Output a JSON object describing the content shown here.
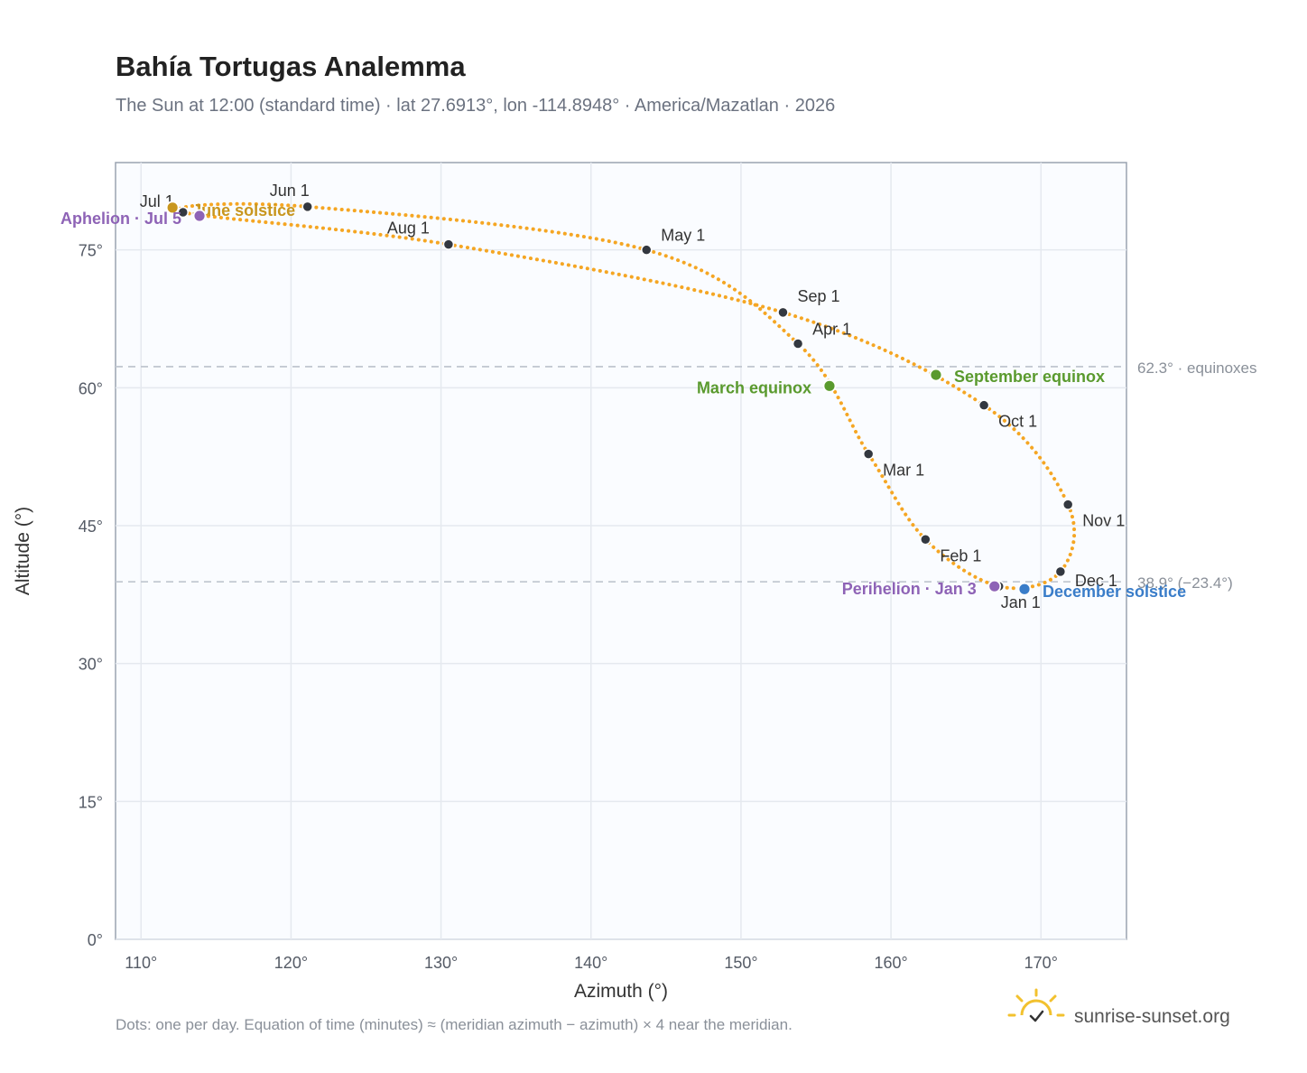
{
  "title": "Bahía Tortugas Analemma",
  "subtitle": "The Sun at 12:00 (standard time) · lat 27.6913°, lon -114.8948° · America/Mazatlan · 2026",
  "footnote": "Dots: one per day. Equation of time (minutes) ≈ (meridian azimuth − azimuth) × 4 near the meridian.",
  "brand": {
    "name": "sunrise-sunset.org",
    "logo_icon": "sun-check-icon"
  },
  "colors": {
    "curve": "#f5a623",
    "month_dot": "#333840",
    "solstice_june": "#c8961e",
    "solstice_december": "#3a7dc9",
    "equinox": "#5a9a2e",
    "apsis": "#8e63b6",
    "reference_line": "#c3c9d2"
  },
  "chart_data": {
    "type": "scatter",
    "xlabel": "Azimuth (°)",
    "ylabel": "Altitude (°)",
    "xlim": [
      108.3,
      175.7
    ],
    "ylim": [
      0,
      84.5
    ],
    "x_ticks": [
      110,
      120,
      130,
      140,
      150,
      160,
      170
    ],
    "x_tick_labels": [
      "110°",
      "120°",
      "130°",
      "140°",
      "150°",
      "160°",
      "170°"
    ],
    "y_ticks": [
      0,
      15,
      30,
      45,
      60,
      75
    ],
    "y_tick_labels": [
      "0°",
      "15°",
      "30°",
      "45°",
      "60°",
      "75°"
    ],
    "grid": true,
    "reference_lines": [
      {
        "y": 62.3,
        "label": "62.3° · equinoxes"
      },
      {
        "y": 38.9,
        "label": "38.9° (−23.4°)"
      }
    ],
    "month_points": [
      {
        "label": "Jan 1",
        "az": 167.2,
        "alt": 38.4
      },
      {
        "label": "Feb 1",
        "az": 162.3,
        "alt": 43.5
      },
      {
        "label": "Mar 1",
        "az": 158.5,
        "alt": 52.8
      },
      {
        "label": "Apr 1",
        "az": 153.8,
        "alt": 64.8
      },
      {
        "label": "May 1",
        "az": 143.7,
        "alt": 75.0
      },
      {
        "label": "Jun 1",
        "az": 121.1,
        "alt": 79.7
      },
      {
        "label": "Jul 1",
        "az": 112.8,
        "alt": 79.1
      },
      {
        "label": "Aug 1",
        "az": 130.5,
        "alt": 75.6
      },
      {
        "label": "Sep 1",
        "az": 152.8,
        "alt": 68.2
      },
      {
        "label": "Oct 1",
        "az": 166.2,
        "alt": 58.1
      },
      {
        "label": "Nov 1",
        "az": 171.8,
        "alt": 47.3
      },
      {
        "label": "Dec 1",
        "az": 171.3,
        "alt": 40.0
      }
    ],
    "events": [
      {
        "label": "March equinox",
        "az": 155.9,
        "alt": 60.2,
        "kind": "equinox"
      },
      {
        "label": "June solstice",
        "az": 112.1,
        "alt": 79.6,
        "kind": "solstice_june"
      },
      {
        "label": "September equinox",
        "az": 163.0,
        "alt": 61.4,
        "kind": "equinox"
      },
      {
        "label": "December solstice",
        "az": 168.9,
        "alt": 38.1,
        "kind": "solstice_december"
      },
      {
        "label": "Perihelion · Jan 3",
        "az": 166.9,
        "alt": 38.4,
        "kind": "apsis"
      },
      {
        "label": "Aphelion · Jul 5",
        "az": 113.9,
        "alt": 78.7,
        "kind": "apsis"
      }
    ]
  }
}
